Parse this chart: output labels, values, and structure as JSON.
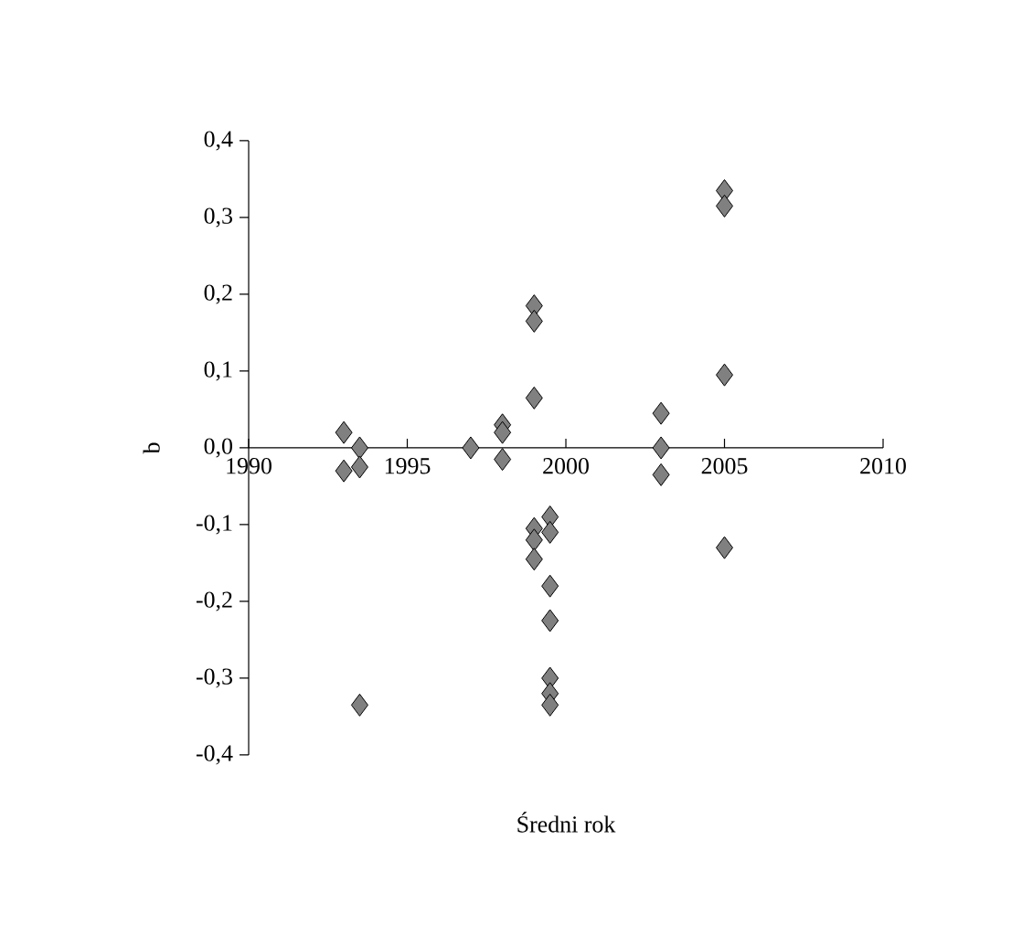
{
  "chart_data": {
    "type": "scatter",
    "xlabel": "Średni rok",
    "ylabel": "b",
    "x": [
      1993.0,
      1993.0,
      1993.5,
      1993.5,
      1993.5,
      1997.0,
      1998.0,
      1998.0,
      1998.0,
      1999.0,
      1999.0,
      1999.0,
      1999.0,
      1999.0,
      1999.0,
      1999.5,
      1999.5,
      1999.5,
      1999.5,
      1999.5,
      1999.5,
      1999.5,
      2003.0,
      2003.0,
      2003.0,
      2005.0,
      2005.0,
      2005.0,
      2005.0
    ],
    "values": [
      0.02,
      -0.03,
      0.0,
      -0.025,
      -0.335,
      0.0,
      0.03,
      0.02,
      -0.015,
      0.185,
      0.165,
      0.065,
      -0.105,
      -0.12,
      -0.145,
      -0.09,
      -0.11,
      -0.18,
      -0.225,
      -0.3,
      -0.32,
      -0.335,
      0.045,
      0.0,
      -0.035,
      0.335,
      0.315,
      0.095,
      -0.13
    ],
    "color": "#808080",
    "marker": "diamond",
    "xlim": [
      1990,
      2010
    ],
    "xticks": [
      1990,
      1995,
      2000,
      2005,
      2010
    ],
    "ylim": [
      -0.4,
      0.4
    ],
    "yticks": [
      {
        "value": -0.4,
        "label": "-0,4"
      },
      {
        "value": -0.3,
        "label": "-0,3"
      },
      {
        "value": -0.2,
        "label": "-0,2"
      },
      {
        "value": -0.1,
        "label": "-0,1"
      },
      {
        "value": 0.0,
        "label": "0,0"
      },
      {
        "value": 0.1,
        "label": "0,1"
      },
      {
        "value": 0.2,
        "label": "0,2"
      },
      {
        "value": 0.3,
        "label": "0,3"
      },
      {
        "value": 0.4,
        "label": "0,4"
      }
    ]
  }
}
